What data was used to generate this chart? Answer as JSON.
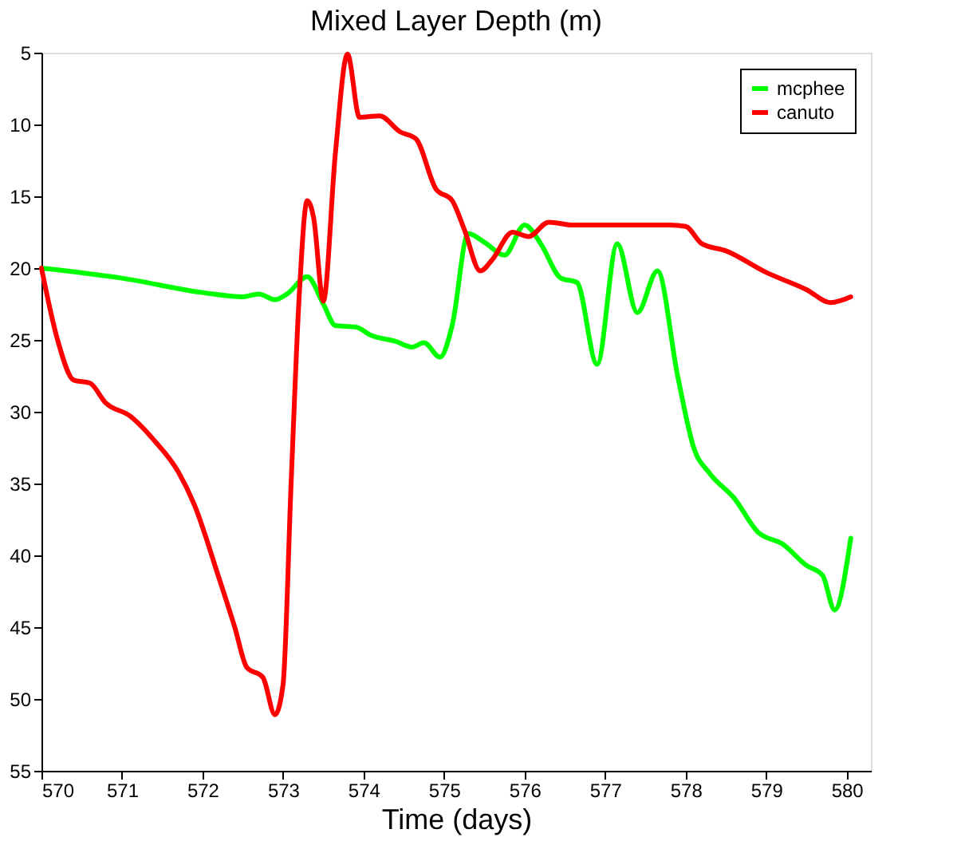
{
  "chart_data": {
    "type": "line",
    "title": "Mixed Layer Depth (m)",
    "xlabel": "Time (days)",
    "xlim": [
      570,
      580.3
    ],
    "xticks": [
      570,
      571,
      572,
      573,
      574,
      575,
      576,
      577,
      578,
      579,
      580
    ],
    "ylim": [
      55,
      5
    ],
    "yticks": [
      5,
      10,
      15,
      20,
      25,
      30,
      35,
      40,
      45,
      50,
      55
    ],
    "grid": false,
    "legend": "top right",
    "line_style": "solid",
    "marker": "none",
    "series": [
      {
        "name": "mcphee",
        "color": "#00ff00",
        "x": [
          570,
          571,
          572,
          572.5,
          572.7,
          572.9,
          573.05,
          573.3,
          573.5,
          573.65,
          573.9,
          574.1,
          574.4,
          574.6,
          574.75,
          574.95,
          575.1,
          575.3,
          575.5,
          575.75,
          576,
          576.2,
          576.45,
          576.65,
          576.9,
          577.15,
          577.4,
          577.65,
          577.9,
          578.1,
          578.3,
          578.6,
          578.9,
          579.2,
          579.5,
          579.7,
          579.85,
          580.05
        ],
        "values": [
          20,
          20.7,
          21.7,
          22,
          21.8,
          22.2,
          21.8,
          20.6,
          22.5,
          24,
          24.1,
          24.7,
          25.1,
          25.5,
          25.2,
          26.2,
          24,
          17.6,
          18.2,
          19.1,
          17,
          18.3,
          20.7,
          21,
          26.7,
          18.3,
          23.1,
          20.2,
          27.5,
          32.5,
          34.3,
          36,
          38.4,
          39.2,
          40.7,
          41.4,
          43.8,
          38.8
        ]
      },
      {
        "name": "canuto",
        "color": "#ff0000",
        "x": [
          570,
          570.2,
          570.4,
          570.6,
          570.8,
          571.1,
          571.4,
          571.7,
          571.9,
          572.2,
          572.4,
          572.55,
          572.75,
          572.9,
          573.0,
          573.1,
          573.2,
          573.3,
          573.38,
          573.5,
          573.65,
          573.8,
          573.95,
          574.2,
          574.45,
          574.65,
          574.9,
          575.1,
          575.25,
          575.45,
          575.6,
          575.85,
          576.05,
          576.3,
          576.6,
          577,
          577.5,
          577.8,
          578,
          578.2,
          578.5,
          579,
          579.5,
          579.8,
          580.05
        ],
        "values": [
          20,
          25,
          27.8,
          28,
          29.4,
          30.3,
          32,
          34.2,
          36.5,
          41.5,
          45,
          47.8,
          48.5,
          51.1,
          49,
          35,
          22,
          15.3,
          16.5,
          22.3,
          12,
          5.1,
          9.5,
          9.4,
          10.5,
          11,
          14.5,
          15.3,
          17.3,
          20.2,
          19.4,
          17.5,
          17.8,
          16.8,
          17,
          17,
          17,
          17,
          17.1,
          18.3,
          18.8,
          20.3,
          21.5,
          22.4,
          22
        ]
      }
    ]
  }
}
